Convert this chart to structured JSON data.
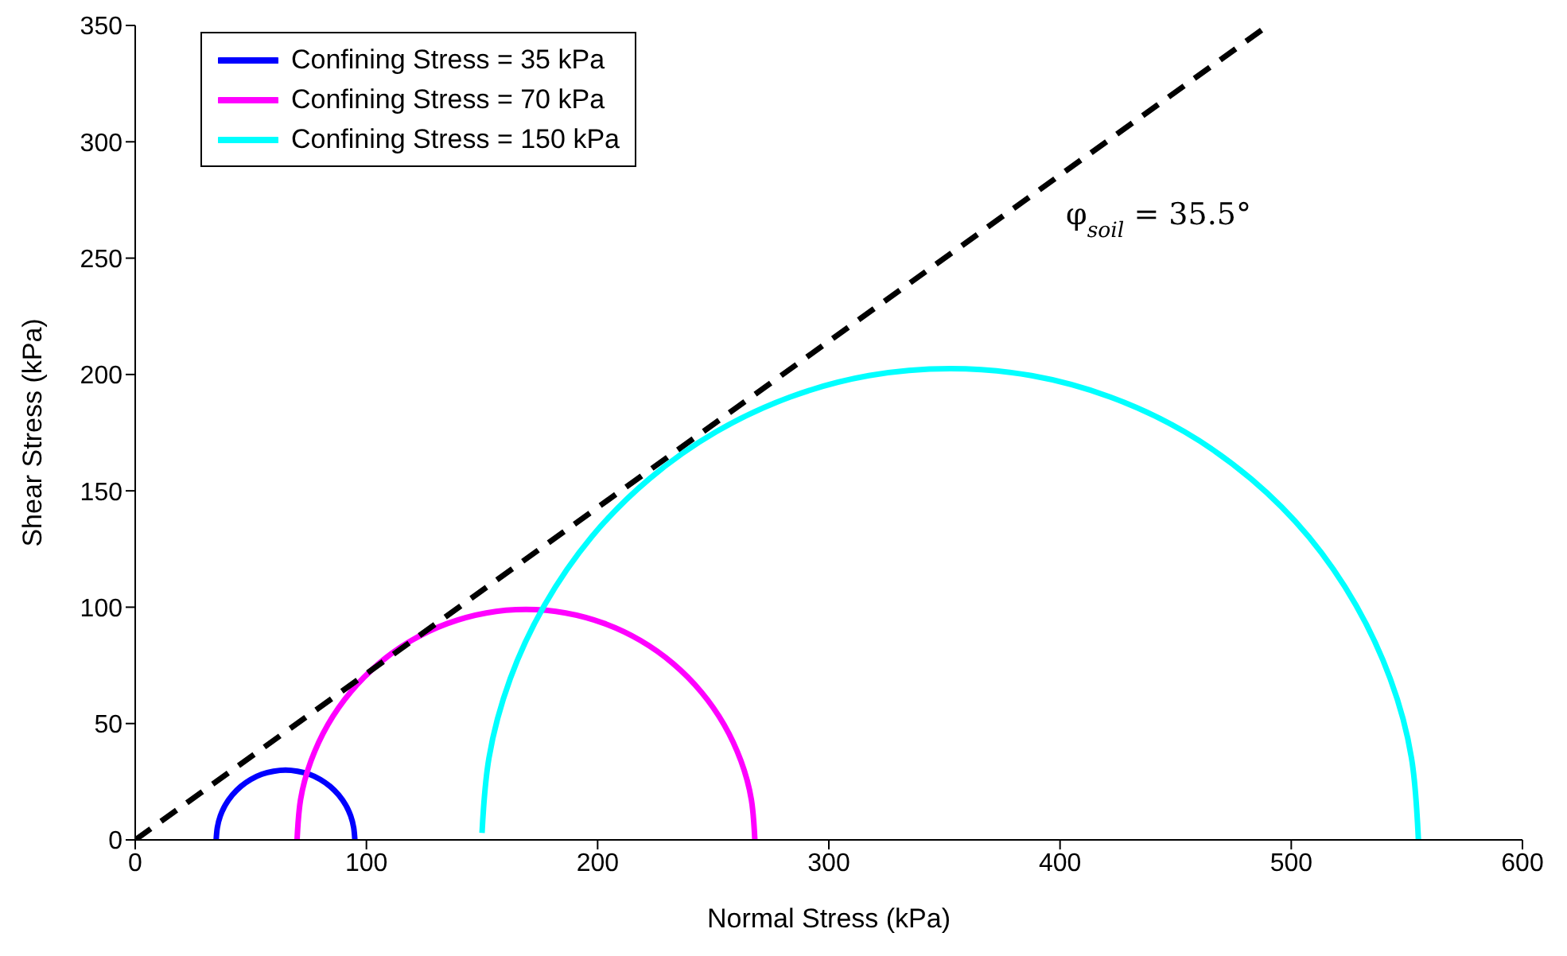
{
  "chart_data": {
    "type": "line",
    "xlabel": "Normal Stress (kPa)",
    "ylabel": "Shear Stress (kPa)",
    "xlim": [
      0,
      600
    ],
    "xticks": [
      0,
      100,
      200,
      300,
      400,
      500,
      600
    ],
    "ylim": [
      0,
      350
    ],
    "yticks": [
      0,
      50,
      100,
      150,
      200,
      250,
      300,
      350
    ],
    "grid": false,
    "legend": "top left",
    "marker": "none",
    "annotations": [
      "φ$_{soil}$ = 35.5°"
    ],
    "series": [
      {
        "name": "Confining Stress = 35 kPa",
        "color": "#0000ff",
        "x": [
          35,
          35.5,
          36.8,
          39,
          42,
          45.7,
          50,
          54.7,
          59.8,
          65,
          70.2,
          75.3,
          80,
          84.3,
          88,
          91,
          93.2,
          94.5,
          95
        ],
        "values": [
          0,
          5.2,
          10.3,
          15,
          19.3,
          23,
          26,
          28.2,
          29.5,
          30,
          29.5,
          28.2,
          26,
          23,
          19.3,
          15,
          10.3,
          5.2,
          0
        ]
      },
      {
        "name": "Confining Stress = 70 kPa",
        "color": "#ff00ff",
        "x": [
          70,
          71.5,
          76,
          83.3,
          93.2,
          105.4,
          119.5,
          135.1,
          151.8,
          169,
          186.2,
          202.9,
          218.5,
          232.6,
          244.8,
          254.7,
          262,
          266.5,
          268
        ],
        "values": [
          0,
          17.2,
          33.9,
          49.5,
          63.6,
          75.8,
          85.7,
          93,
          97.5,
          99,
          97.5,
          93,
          85.7,
          75.8,
          63.6,
          49.5,
          33.9,
          17.2,
          0
        ]
      },
      {
        "name": "Confining Stress = 150 kPa",
        "color": "#00ffff",
        "x": [
          150,
          153,
          162.2,
          177.1,
          197.4,
          222.3,
          251.3,
          283.2,
          317.3,
          352.5,
          387.7,
          421.8,
          453.8,
          482.7,
          507.6,
          527.9,
          542.8,
          552,
          555
        ],
        "values": [
          3,
          35.2,
          69.3,
          101,
          130.2,
          155.1,
          175.4,
          190.3,
          199.5,
          202.5,
          199.5,
          190.3,
          175.4,
          155.1,
          130.2,
          101,
          69.3,
          35.2,
          0
        ]
      },
      {
        "color": "#000000",
        "line_style": "dashed",
        "x": [
          0,
          490
        ],
        "values": [
          0,
          350
        ]
      }
    ]
  }
}
